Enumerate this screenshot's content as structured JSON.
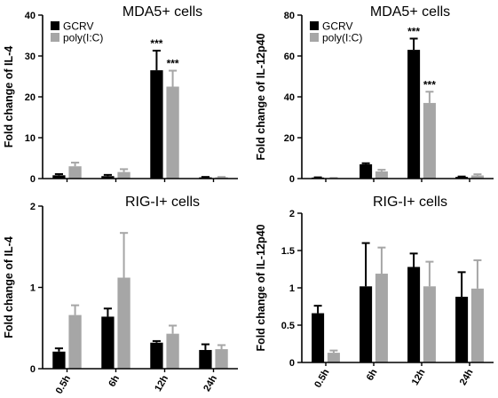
{
  "chart_data": [
    {
      "type": "bar",
      "title": "MDA5+ cells",
      "ylabel": "Fold change of IL-4",
      "ylim": [
        0,
        40
      ],
      "yticks": [
        0,
        10,
        20,
        30,
        40
      ],
      "categories": [
        "0.5h",
        "6h",
        "12h",
        "24h"
      ],
      "show_xticks": false,
      "legend": "top-left",
      "series": [
        {
          "name": "GCRV",
          "color": "#000000",
          "values": [
            0.8,
            0.6,
            26.5,
            0.3
          ],
          "errors": [
            0.3,
            0.3,
            4.8,
            0.1
          ]
        },
        {
          "name": "poly(I:C)",
          "color": "#a6a6a6",
          "values": [
            3.0,
            1.6,
            22.5,
            0.3
          ],
          "errors": [
            0.9,
            0.7,
            3.9,
            0.1
          ]
        }
      ],
      "annotations": [
        {
          "category": 2,
          "series": 0,
          "text": "***"
        },
        {
          "category": 2,
          "series": 1,
          "text": "***"
        }
      ]
    },
    {
      "type": "bar",
      "title": "MDA5+ cells",
      "ylabel": "Fold change of IL-12p40",
      "ylim": [
        0,
        80
      ],
      "yticks": [
        0,
        20,
        40,
        60,
        80
      ],
      "categories": [
        "0.5h",
        "6h",
        "12h",
        "24h"
      ],
      "show_xticks": false,
      "legend": "top-left",
      "series": [
        {
          "name": "GCRV",
          "color": "#000000",
          "values": [
            0.5,
            7.0,
            63,
            0.8
          ],
          "errors": [
            0.1,
            0.5,
            5.5,
            0.2
          ]
        },
        {
          "name": "poly(I:C)",
          "color": "#a6a6a6",
          "values": [
            0.2,
            3.5,
            37,
            1.5
          ],
          "errors": [
            0.1,
            0.8,
            5.5,
            0.6
          ]
        }
      ],
      "annotations": [
        {
          "category": 2,
          "series": 0,
          "text": "***"
        },
        {
          "category": 2,
          "series": 1,
          "text": "***"
        }
      ]
    },
    {
      "type": "bar",
      "title": "RIG-I+ cells",
      "ylabel": "Fold change of IL-4",
      "ylim": [
        0,
        2
      ],
      "yticks": [
        0,
        1,
        2
      ],
      "categories": [
        "0.5h",
        "6h",
        "12h",
        "24h"
      ],
      "show_xticks": true,
      "series": [
        {
          "color": "#000000",
          "values": [
            0.21,
            0.64,
            0.32,
            0.23
          ],
          "errors": [
            0.04,
            0.1,
            0.02,
            0.07
          ]
        },
        {
          "color": "#a6a6a6",
          "values": [
            0.66,
            1.12,
            0.43,
            0.24
          ],
          "errors": [
            0.12,
            0.55,
            0.1,
            0.05
          ]
        }
      ]
    },
    {
      "type": "bar",
      "title": "RIG-I+ cells",
      "ylabel": "Fold change of IL-12p40",
      "ylim": [
        0,
        2
      ],
      "yticks": [
        0,
        0.5,
        1,
        1.5,
        2
      ],
      "categories": [
        "0.5h",
        "6h",
        "12h",
        "24h"
      ],
      "show_xticks": true,
      "series": [
        {
          "color": "#000000",
          "values": [
            0.66,
            1.02,
            1.28,
            0.88
          ],
          "errors": [
            0.1,
            0.58,
            0.18,
            0.33
          ]
        },
        {
          "color": "#a6a6a6",
          "values": [
            0.13,
            1.19,
            1.02,
            0.99
          ],
          "errors": [
            0.03,
            0.35,
            0.33,
            0.38
          ]
        }
      ]
    }
  ]
}
